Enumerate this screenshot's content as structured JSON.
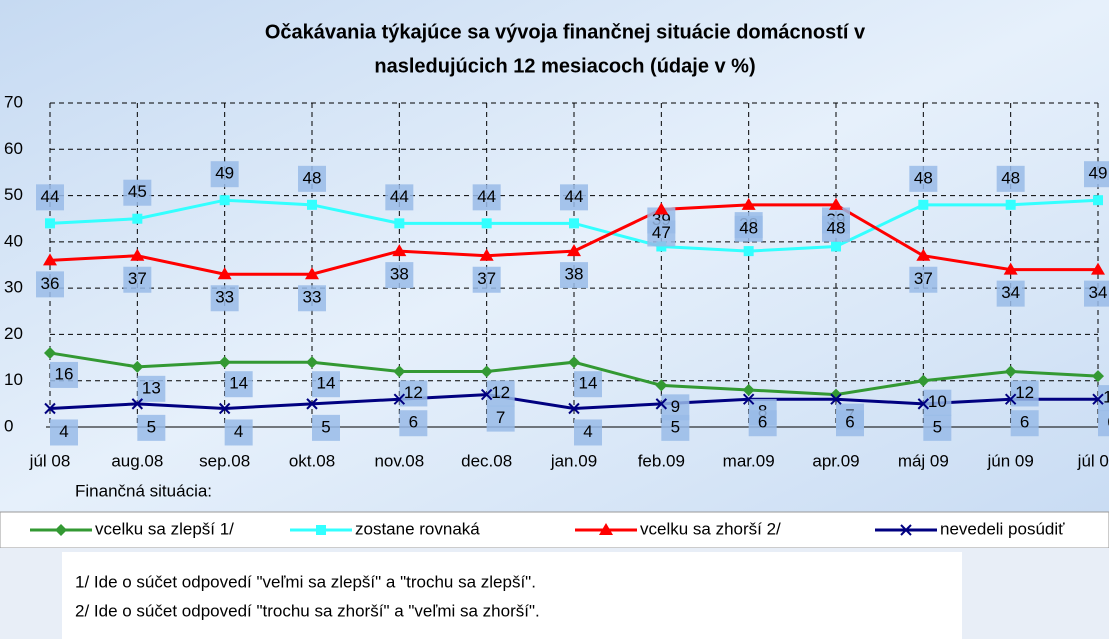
{
  "chart_data": {
    "type": "line",
    "title": [
      "Očakávania týkajúce sa vývoja finančnej situácie domácností v",
      "nasledujúcich 12 mesiacoch  (údaje v %)"
    ],
    "x_label": "Finančná situácia:",
    "categories": [
      "júl 08",
      "aug.08",
      "sep.08",
      "okt.08",
      "nov.08",
      "dec.08",
      "jan.09",
      "feb.09",
      "mar.09",
      "apr.09",
      "máj 09",
      "jún 09",
      "júl 09"
    ],
    "series": [
      {
        "name": "vcelku sa zlepší 1/",
        "color": "#339933",
        "marker": "diamond",
        "values": [
          16,
          13,
          14,
          14,
          12,
          12,
          14,
          9,
          8,
          7,
          10,
          12,
          11
        ]
      },
      {
        "name": "zostane rovnaká",
        "color": "#33ffff",
        "marker": "square",
        "values": [
          44,
          45,
          49,
          48,
          44,
          44,
          44,
          39,
          38,
          39,
          48,
          48,
          49
        ]
      },
      {
        "name": "vcelku sa zhorší 2/",
        "color": "#ff0000",
        "marker": "triangle",
        "values": [
          36,
          37,
          33,
          33,
          38,
          37,
          38,
          47,
          48,
          48,
          37,
          34,
          34
        ]
      },
      {
        "name": "nevedeli posúdiť",
        "color": "#000080",
        "marker": "x",
        "values": [
          4,
          5,
          4,
          5,
          6,
          7,
          4,
          5,
          6,
          6,
          5,
          6,
          6
        ]
      }
    ],
    "ylim": [
      0,
      70
    ],
    "yticks": [
      0,
      10,
      20,
      30,
      40,
      50,
      60,
      70
    ],
    "grid": true,
    "notes": [
      "1/ Ide o súčet odpovedí \"veľmi sa zlepší\" a \"trochu sa zlepší\".",
      "2/ Ide o súčet odpovedí \"trochu sa zhorší\" a \"veľmi sa zhorší\"."
    ]
  }
}
